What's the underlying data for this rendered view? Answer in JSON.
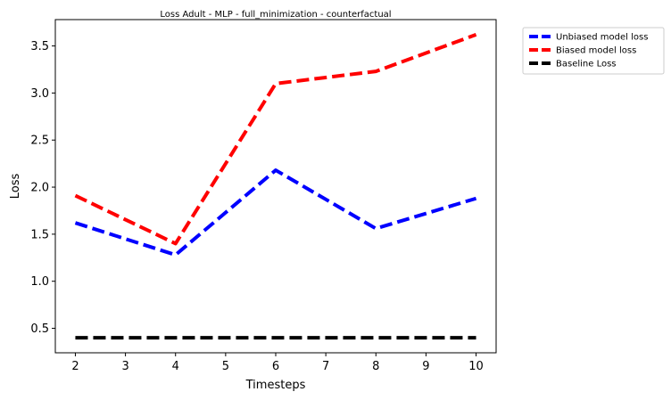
{
  "chart_data": {
    "type": "line",
    "title": "Loss Adult - MLP - full_minimization - counterfactual",
    "xlabel": "Timesteps",
    "ylabel": "Loss",
    "x": [
      2,
      4,
      6,
      8,
      10
    ],
    "xlim": [
      1.6,
      10.4
    ],
    "ylim": [
      0.24,
      3.78
    ],
    "xticks": [
      "2",
      "3",
      "4",
      "5",
      "6",
      "7",
      "8",
      "9",
      "10"
    ],
    "yticks": [
      "0.5",
      "1.0",
      "1.5",
      "2.0",
      "2.5",
      "3.0",
      "3.5"
    ],
    "grid": false,
    "legend_position": "outside-top-right",
    "series": [
      {
        "name": "Unbiased model loss",
        "color": "#0000ff",
        "values": [
          1.62,
          1.28,
          2.18,
          1.56,
          1.88
        ]
      },
      {
        "name": "Biased model loss",
        "color": "#ff0000",
        "values": [
          1.91,
          1.4,
          3.1,
          3.23,
          3.62
        ]
      },
      {
        "name": "Baseline Loss",
        "color": "#000000",
        "values": [
          0.4,
          0.4,
          0.4,
          0.4,
          0.4
        ]
      }
    ]
  }
}
